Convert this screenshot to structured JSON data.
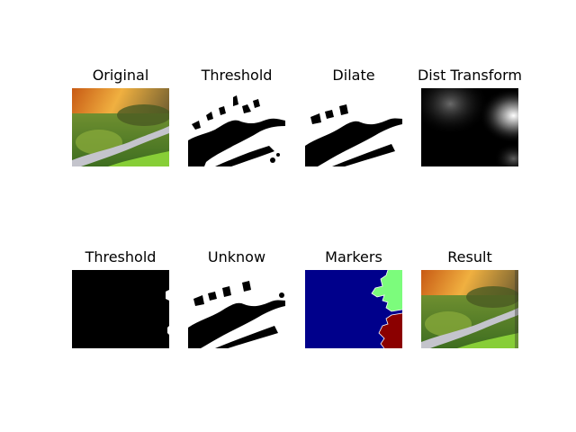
{
  "figure": {
    "panels": [
      {
        "title": "Original",
        "kind": "photo"
      },
      {
        "title": "Threshold",
        "kind": "binary"
      },
      {
        "title": "Dilate",
        "kind": "dilate"
      },
      {
        "title": "Dist Transform",
        "kind": "dist"
      },
      {
        "title": "Threshold",
        "kind": "black"
      },
      {
        "title": "Unknow",
        "kind": "unknown"
      },
      {
        "title": "Markers",
        "kind": "markers"
      },
      {
        "title": "Result",
        "kind": "photo"
      }
    ],
    "colors": {
      "markers_background": "#00008b",
      "markers_region_light": "#7cfc7c",
      "markers_region_dark": "#8b0000",
      "photo_sky": "#d9a34a",
      "photo_grass": "#5f8f2e",
      "photo_path": "#b8b8c0"
    }
  }
}
